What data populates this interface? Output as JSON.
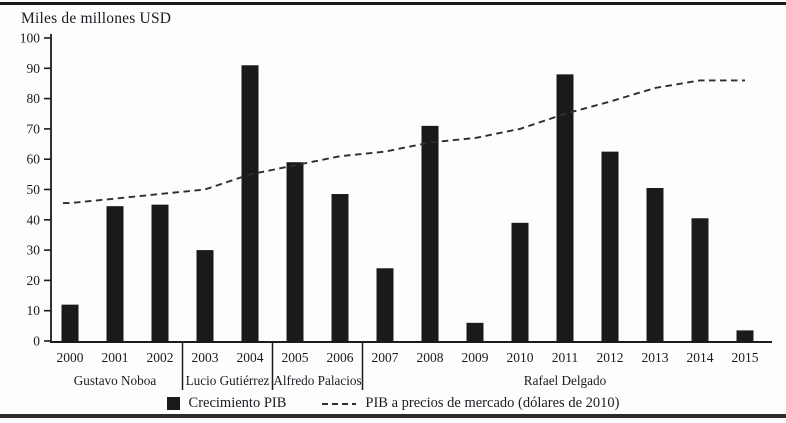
{
  "figure": {
    "y_axis_title": "Miles de millones USD"
  },
  "chart_data": {
    "type": "bar",
    "title": "",
    "y_axis_title": "Miles de millones USD",
    "xlabel": "",
    "ylabel": "Miles de millones USD",
    "ylim": [
      0,
      100
    ],
    "y_ticks": [
      0,
      10,
      20,
      30,
      40,
      50,
      60,
      70,
      80,
      90,
      100
    ],
    "grid": false,
    "legend_position": "bottom",
    "categories": [
      "2000",
      "2001",
      "2002",
      "2003",
      "2004",
      "2005",
      "2006",
      "2007",
      "2008",
      "2009",
      "2010",
      "2011",
      "2012",
      "2013",
      "2014",
      "2015"
    ],
    "series": [
      {
        "name": "Crecimiento PIB",
        "render": "bar",
        "color": "#1a1a1a",
        "values": [
          12,
          44.5,
          45,
          30,
          91,
          59,
          48.5,
          24,
          71,
          6,
          39,
          88,
          62.5,
          50.5,
          40.5,
          3.5
        ]
      },
      {
        "name": "PIB a precios de mercado (dólares de 2010)",
        "render": "line",
        "line_style": "dashed",
        "color": "#2e2e2e",
        "values": [
          45.5,
          47,
          48.5,
          50,
          55,
          58,
          61,
          62.5,
          65.5,
          67,
          70,
          75,
          79,
          83.5,
          86,
          86
        ]
      }
    ],
    "x_group_labels": [
      {
        "label": "Gustavo Noboa",
        "from": "2000",
        "to": "2002"
      },
      {
        "label": "Lucio Gutiérrez",
        "from": "2003",
        "to": "2004"
      },
      {
        "label": "Alfredo Palacios",
        "from": "2005",
        "to": "2006"
      },
      {
        "label": "Rafael Delgado",
        "from": "2007",
        "to": "2015"
      }
    ]
  }
}
